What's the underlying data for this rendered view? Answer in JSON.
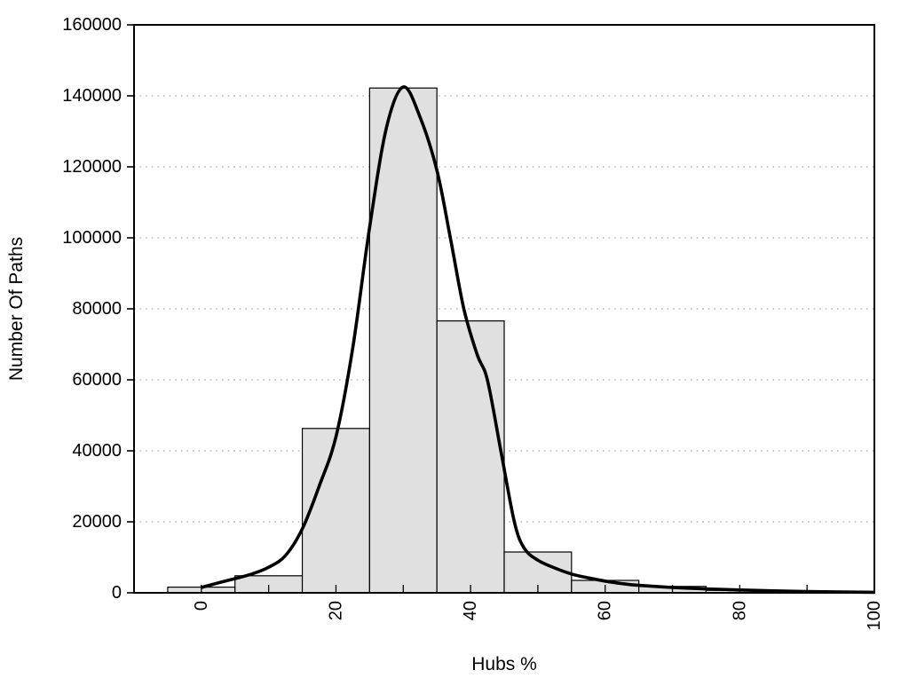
{
  "figure": {
    "xlabel": "Hubs %",
    "ylabel": "Number Of Paths",
    "background_color": "#ffffff"
  },
  "chart_data": {
    "type": "bar",
    "subtype": "histogram-with-density-curve",
    "title": "",
    "xlabel": "Hubs %",
    "ylabel": "Number Of Paths",
    "xlim": [
      -10,
      100
    ],
    "ylim": [
      0,
      160000
    ],
    "grid": "horizontal-dotted",
    "legend": "none",
    "bars": {
      "bin_width": 10,
      "centers": [
        0,
        10,
        20,
        30,
        40,
        50,
        60,
        70,
        80,
        90
      ],
      "values": [
        1600,
        4800,
        46300,
        142200,
        76600,
        11500,
        3500,
        1800,
        700,
        250
      ]
    },
    "series": [
      {
        "name": "density-curve",
        "type": "line",
        "x": [
          0,
          2.5,
          5,
          7.5,
          10,
          12.5,
          15,
          17.5,
          20,
          22.5,
          25,
          27.5,
          30,
          32.5,
          35,
          37,
          39,
          41,
          42.5,
          44.5,
          46.5,
          48,
          50,
          52.5,
          55,
          57.5,
          60,
          62.5,
          65,
          70,
          75,
          80,
          85,
          90,
          95,
          100
        ],
        "y": [
          1500,
          2800,
          4000,
          5300,
          7200,
          10500,
          18000,
          30000,
          44000,
          69000,
          103000,
          131000,
          142500,
          134000,
          119000,
          100000,
          80000,
          67000,
          60000,
          40000,
          20000,
          12500,
          9200,
          7000,
          5300,
          4200,
          3300,
          2600,
          2100,
          1500,
          1100,
          800,
          550,
          380,
          250,
          150
        ]
      }
    ],
    "x_tick_positions": [
      0,
      10,
      20,
      30,
      40,
      50,
      60,
      70,
      80,
      90,
      100
    ],
    "x_tick_labels": [
      {
        "value": 0,
        "label": "0"
      },
      {
        "value": 20,
        "label": "20"
      },
      {
        "value": 40,
        "label": "40"
      },
      {
        "value": 60,
        "label": "60"
      },
      {
        "value": 80,
        "label": "80"
      },
      {
        "value": 100,
        "label": "100"
      }
    ],
    "y_tick_positions": [
      0,
      20000,
      40000,
      60000,
      80000,
      100000,
      120000,
      140000,
      160000
    ],
    "y_tick_labels": [
      "0",
      "20000",
      "40000",
      "60000",
      "80000",
      "100000",
      "120000",
      "140000",
      "160000"
    ],
    "gridline_values": [
      20000,
      40000,
      60000,
      80000,
      100000,
      120000,
      140000
    ],
    "colors": {
      "bar_fill": "#e0e0e0",
      "bar_stroke": "#000000",
      "curve": "#000000",
      "frame": "#000000",
      "grid": "#b8b8b8",
      "tick": "#000000"
    }
  }
}
